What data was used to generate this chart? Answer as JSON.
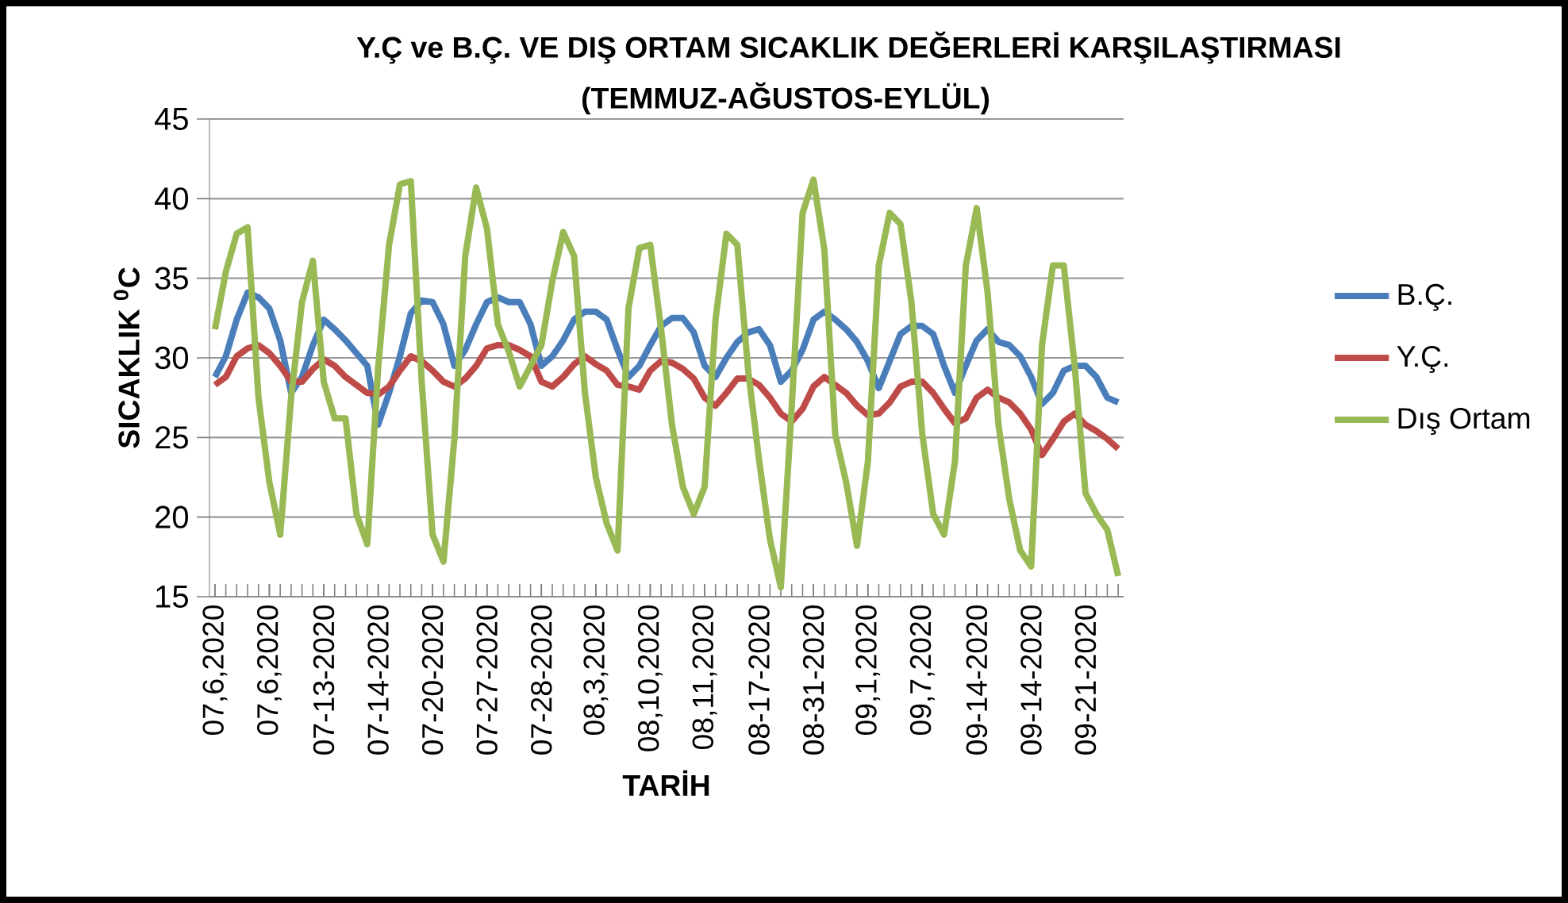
{
  "chart_data": {
    "type": "line",
    "title": "Y.Ç ve  B.Ç.  VE DIŞ ORTAM SICAKLIK DEĞERLERİ KARŞILAŞTIRMASI",
    "subtitle": "(TEMMUZ-AĞUSTOS-EYLÜL)",
    "xlabel": "TARİH",
    "ylabel": "SICAKLIK $^{0}$C",
    "categories": [
      "07,6,2020",
      null,
      null,
      null,
      null,
      "07,6,2020",
      null,
      null,
      null,
      null,
      "07-13-2020",
      null,
      null,
      null,
      null,
      "07-14-2020",
      null,
      null,
      null,
      null,
      "07-20-2020",
      null,
      null,
      null,
      null,
      "07-27-2020",
      null,
      null,
      null,
      null,
      "07-28-2020",
      null,
      null,
      null,
      null,
      "08,3,2020",
      null,
      null,
      null,
      null,
      "08,10,2020",
      null,
      null,
      null,
      null,
      "08,11,2020",
      null,
      null,
      null,
      null,
      "08-17-2020",
      null,
      null,
      null,
      null,
      "08-31-2020",
      null,
      null,
      null,
      null,
      "09,1,2020",
      null,
      null,
      null,
      null,
      "09,7,2020",
      null,
      null,
      null,
      null,
      "09-14-2020",
      null,
      null,
      null,
      null,
      "09-14-2020",
      null,
      null,
      null,
      null,
      "09-21-2020",
      null,
      null,
      null
    ],
    "series": [
      {
        "name": "B.Ç.",
        "color": "#4a7ebb",
        "values": [
          28.8,
          30.1,
          32.4,
          34.1,
          33.8,
          33.1,
          31.1,
          27.8,
          28.8,
          30.8,
          32.4,
          31.8,
          31.1,
          30.3,
          29.5,
          25.8,
          27.8,
          30.1,
          32.8,
          33.6,
          33.5,
          32.1,
          29.5,
          30.5,
          32.1,
          33.5,
          33.8,
          33.5,
          33.5,
          32.1,
          29.5,
          30.1,
          31.1,
          32.4,
          32.9,
          32.9,
          32.4,
          30.5,
          28.8,
          29.5,
          30.8,
          32.0,
          32.5,
          32.5,
          31.6,
          29.5,
          28.8,
          30.0,
          31.0,
          31.6,
          31.8,
          30.8,
          28.5,
          29.2,
          30.5,
          32.4,
          32.9,
          32.4,
          31.8,
          31.0,
          29.8,
          28.1,
          29.8,
          31.5,
          32.0,
          32.0,
          31.5,
          29.5,
          27.8,
          29.5,
          31.1,
          31.8,
          31.0,
          30.8,
          30.1,
          28.8,
          27.1,
          27.8,
          29.2,
          29.5,
          29.5,
          28.8,
          27.5,
          27.2
        ]
      },
      {
        "name": "Y.Ç.",
        "color": "#be4b48",
        "values": [
          28.3,
          28.8,
          30.1,
          30.6,
          30.8,
          30.3,
          29.5,
          28.5,
          28.5,
          29.3,
          29.9,
          29.5,
          28.8,
          28.3,
          27.8,
          27.7,
          28.2,
          29.2,
          30.1,
          29.8,
          29.2,
          28.5,
          28.2,
          28.7,
          29.5,
          30.6,
          30.8,
          30.8,
          30.5,
          30.1,
          28.5,
          28.2,
          28.8,
          29.6,
          30.1,
          29.6,
          29.2,
          28.3,
          28.2,
          28.0,
          29.2,
          29.8,
          29.7,
          29.3,
          28.7,
          27.5,
          27.0,
          27.8,
          28.7,
          28.7,
          28.3,
          27.5,
          26.5,
          26.0,
          26.8,
          28.2,
          28.8,
          28.3,
          27.8,
          27.0,
          26.4,
          26.5,
          27.2,
          28.2,
          28.5,
          28.5,
          27.8,
          26.8,
          25.9,
          26.2,
          27.5,
          28.0,
          27.5,
          27.2,
          26.5,
          25.5,
          23.9,
          24.9,
          26.0,
          26.5,
          25.8,
          25.4,
          24.9,
          24.3
        ]
      },
      {
        "name": "Dış Ortam",
        "color": "#98b954",
        "values": [
          31.8,
          35.4,
          37.8,
          38.2,
          27.5,
          22.2,
          18.9,
          27.5,
          33.5,
          36.1,
          28.5,
          26.2,
          26.2,
          20.2,
          18.3,
          29.4,
          37.1,
          40.9,
          41.1,
          28.5,
          18.9,
          17.2,
          24.9,
          36.4,
          40.7,
          38.1,
          32.1,
          30.4,
          28.2,
          29.5,
          30.8,
          34.8,
          37.9,
          36.4,
          27.8,
          22.5,
          19.6,
          17.9,
          33.1,
          36.9,
          37.1,
          31.8,
          25.8,
          21.9,
          20.2,
          21.9,
          32.4,
          37.8,
          37.1,
          29.2,
          23.6,
          18.6,
          15.6,
          26.9,
          39.1,
          41.2,
          36.8,
          25.2,
          22.2,
          18.2,
          23.5,
          35.8,
          39.1,
          38.4,
          33.5,
          25.2,
          20.2,
          18.9,
          23.5,
          35.8,
          39.4,
          34.1,
          25.8,
          21.1,
          17.9,
          16.9,
          30.8,
          35.8,
          35.8,
          29.5,
          21.5,
          20.2,
          19.2,
          16.3
        ]
      }
    ],
    "ylim": [
      15,
      45
    ],
    "yticks": [
      15,
      20,
      25,
      30,
      35,
      40,
      45
    ],
    "grid": "y",
    "legend": "right",
    "marker": "none",
    "line_style": "solid"
  }
}
